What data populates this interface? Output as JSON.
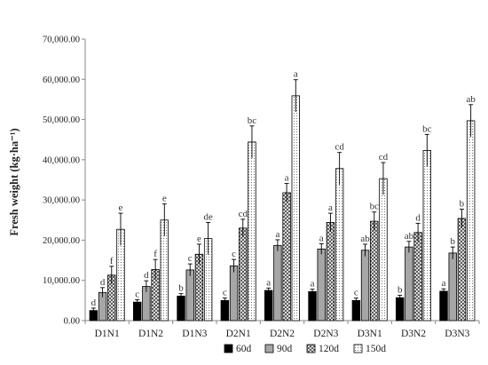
{
  "chart_data": {
    "type": "bar",
    "title": "",
    "xlabel": "",
    "ylabel": "Fresh weight (kg·ha⁻¹)",
    "ylim": [
      0,
      70000
    ],
    "yticks": [
      0,
      10000,
      20000,
      30000,
      40000,
      50000,
      60000,
      70000
    ],
    "ytick_labels": [
      "0.00",
      "10,000.00",
      "20,000.00",
      "30,000.00",
      "40,000.00",
      "50,000.00",
      "60,000.00",
      "70,000.00"
    ],
    "grid": false,
    "legend_position": "bottom",
    "categories": [
      "D1N1",
      "D1N2",
      "D1N3",
      "D2N1",
      "D2N2",
      "D2N3",
      "D3N1",
      "D3N2",
      "D3N3"
    ],
    "series": [
      {
        "name": "60d",
        "fill": "#000000",
        "values": [
          2500,
          4600,
          6100,
          5000,
          7500,
          7200,
          5000,
          5700,
          7300
        ],
        "errors": [
          600,
          600,
          600,
          600,
          600,
          600,
          600,
          600,
          600
        ],
        "labels": [
          "d",
          "c",
          "b",
          "c",
          "a",
          "a",
          "c",
          "b",
          "a"
        ]
      },
      {
        "name": "90d",
        "fill": "#a6a6a6",
        "values": [
          7000,
          8500,
          12600,
          13600,
          18700,
          17800,
          17500,
          18300,
          16800
        ],
        "errors": [
          1200,
          1400,
          1500,
          1600,
          1400,
          1300,
          1500,
          1400,
          1500
        ],
        "labels": [
          "d",
          "d",
          "c",
          "c",
          "a",
          "a",
          "ab",
          "ab",
          "b"
        ]
      },
      {
        "name": "120d",
        "fill": "crosshatch",
        "values": [
          11300,
          12700,
          16500,
          23000,
          31800,
          24400,
          24700,
          21900,
          25400
        ],
        "errors": [
          2200,
          2500,
          2500,
          2200,
          2300,
          2300,
          2300,
          2300,
          2300
        ],
        "labels": [
          "f",
          "f",
          "e",
          "cd",
          "a",
          "a",
          "bc",
          "d",
          "b"
        ]
      },
      {
        "name": "150d",
        "fill": "dotted",
        "values": [
          22700,
          25000,
          20400,
          44400,
          55900,
          37800,
          35300,
          42300,
          49700
        ],
        "errors": [
          4000,
          4000,
          4000,
          4000,
          4000,
          4000,
          4000,
          4000,
          4000
        ],
        "labels": [
          "e",
          "e",
          "de",
          "bc",
          "a",
          "cd",
          "cd",
          "bc",
          "ab"
        ]
      }
    ]
  }
}
